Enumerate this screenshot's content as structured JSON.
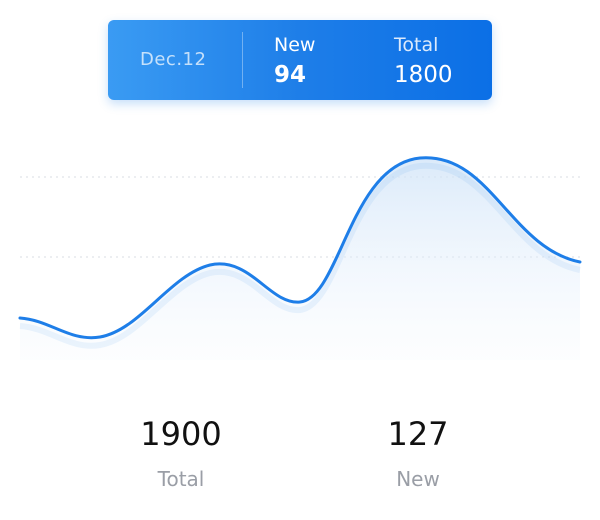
{
  "tooltip": {
    "date": "Dec.12",
    "new_label": "New",
    "new_value": "94",
    "total_label": "Total",
    "total_value": "1800"
  },
  "summary": {
    "total_value": "1900",
    "total_label": "Total",
    "new_value": "127",
    "new_label": "New"
  },
  "colors": {
    "line": "#1e7ee8",
    "tooltip_start": "#3a9bf3",
    "tooltip_end": "#0b6fe6"
  }
}
